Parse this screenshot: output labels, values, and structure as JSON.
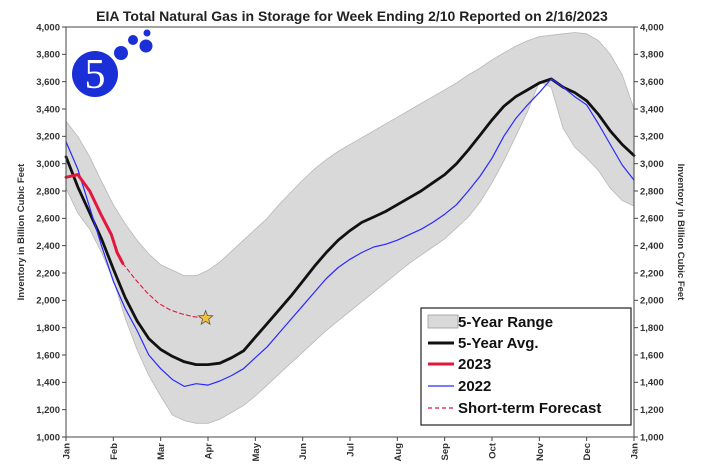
{
  "chart_data": {
    "type": "area",
    "title": "EIA Total Natural Gas in Storage for Week Ending 2/10 Reported on 2/16/2023",
    "ylabel": "Inventory in Billion Cubic Feet",
    "ylabel_right": "Inventory in Billion Cubic Feet",
    "xlabel": "",
    "ylim": [
      1000,
      4000
    ],
    "yticks": [
      "1,000",
      "1,200",
      "1,400",
      "1,600",
      "1,800",
      "2,000",
      "2,200",
      "2,400",
      "2,600",
      "2,800",
      "3,000",
      "3,200",
      "3,400",
      "3,600",
      "3,800",
      "4,000"
    ],
    "ytick_values": [
      1000,
      1200,
      1400,
      1600,
      1800,
      2000,
      2200,
      2400,
      2600,
      2800,
      3000,
      3200,
      3400,
      3600,
      3800,
      4000
    ],
    "xlim": [
      0,
      12
    ],
    "xticks": [
      "Jan",
      "Feb",
      "Mar",
      "Apr",
      "May",
      "Jun",
      "Jul",
      "Aug",
      "Sep",
      "Oct",
      "Nov",
      "Dec",
      "Jan"
    ],
    "xtick_values": [
      0,
      1,
      2,
      3,
      4,
      5,
      6,
      7,
      8,
      9,
      10,
      11,
      12
    ],
    "grid": false,
    "legend_position": "bottom-right",
    "legend": {
      "range_label": "5-Year Range",
      "avg_label": "5-Year Avg.",
      "y2023_label": "2023",
      "y2022_label": "2022",
      "forecast_label": "Short-term Forecast"
    },
    "colors": {
      "range_fill": "#d9d9d9",
      "range_stroke": "#b8b8b8",
      "avg": "#111111",
      "y2023": "#e3173e",
      "y2022": "#2a2aff",
      "forecast": "#e3173e",
      "star": "#f2c03a",
      "logo": "#1a2fd6"
    },
    "x": [
      0,
      0.25,
      0.5,
      0.75,
      1,
      1.25,
      1.5,
      1.75,
      2,
      2.25,
      2.5,
      2.75,
      3,
      3.25,
      3.5,
      3.75,
      4,
      4.25,
      4.5,
      4.75,
      5,
      5.25,
      5.5,
      5.75,
      6,
      6.25,
      6.5,
      6.75,
      7,
      7.25,
      7.5,
      7.75,
      8,
      8.25,
      8.5,
      8.75,
      9,
      9.25,
      9.5,
      9.75,
      10,
      10.25,
      10.5,
      10.75,
      11,
      11.25,
      11.5,
      11.75,
      12
    ],
    "series": [
      {
        "name": "5-Year Range",
        "kind": "band",
        "max": [
          3310,
          3200,
          3050,
          2870,
          2700,
          2560,
          2440,
          2340,
          2260,
          2220,
          2180,
          2180,
          2220,
          2280,
          2360,
          2440,
          2520,
          2600,
          2700,
          2790,
          2880,
          2960,
          3030,
          3090,
          3140,
          3190,
          3240,
          3290,
          3340,
          3390,
          3440,
          3490,
          3540,
          3590,
          3650,
          3700,
          3760,
          3810,
          3860,
          3900,
          3930,
          3940,
          3950,
          3960,
          3950,
          3900,
          3800,
          3650,
          3400
        ],
        "min": [
          2820,
          2640,
          2520,
          2350,
          2150,
          1870,
          1640,
          1450,
          1300,
          1160,
          1120,
          1100,
          1100,
          1130,
          1180,
          1230,
          1300,
          1380,
          1460,
          1540,
          1620,
          1700,
          1780,
          1850,
          1920,
          1990,
          2060,
          2130,
          2200,
          2270,
          2330,
          2390,
          2450,
          2530,
          2610,
          2720,
          2860,
          3020,
          3200,
          3380,
          3600,
          3560,
          3260,
          3120,
          3040,
          2950,
          2820,
          2730,
          2690
        ]
      },
      {
        "name": "5-Year Avg.",
        "kind": "line",
        "values": [
          3050,
          2830,
          2640,
          2450,
          2230,
          2020,
          1850,
          1720,
          1640,
          1590,
          1550,
          1530,
          1530,
          1540,
          1580,
          1630,
          1730,
          1830,
          1930,
          2030,
          2140,
          2250,
          2350,
          2440,
          2510,
          2570,
          2610,
          2650,
          2700,
          2750,
          2800,
          2860,
          2920,
          3000,
          3100,
          3210,
          3320,
          3420,
          3490,
          3540,
          3590,
          3620,
          3560,
          3520,
          3460,
          3360,
          3240,
          3140,
          3060
        ]
      },
      {
        "name": "2022",
        "kind": "line",
        "values": [
          3160,
          2960,
          2680,
          2400,
          2140,
          1940,
          1780,
          1600,
          1500,
          1420,
          1370,
          1390,
          1380,
          1410,
          1450,
          1500,
          1580,
          1660,
          1760,
          1860,
          1960,
          2060,
          2160,
          2240,
          2300,
          2350,
          2390,
          2410,
          2440,
          2480,
          2520,
          2570,
          2630,
          2700,
          2800,
          2910,
          3040,
          3200,
          3330,
          3430,
          3520,
          3620,
          3560,
          3490,
          3430,
          3290,
          3140,
          2990,
          2880
        ]
      },
      {
        "name": "2023",
        "kind": "line",
        "x": [
          0,
          0.25,
          0.5,
          0.75,
          0.96,
          1.08,
          1.2
        ],
        "values": [
          2900,
          2920,
          2800,
          2620,
          2480,
          2350,
          2270
        ]
      },
      {
        "name": "Short-term Forecast",
        "kind": "dashed",
        "x": [
          1.2,
          1.45,
          1.7,
          1.95,
          2.2,
          2.45,
          2.7,
          2.95
        ],
        "values": [
          2270,
          2160,
          2060,
          1980,
          1930,
          1900,
          1880,
          1870
        ]
      }
    ],
    "annotations": [
      {
        "type": "star",
        "x": 2.95,
        "y": 1870
      }
    ]
  }
}
